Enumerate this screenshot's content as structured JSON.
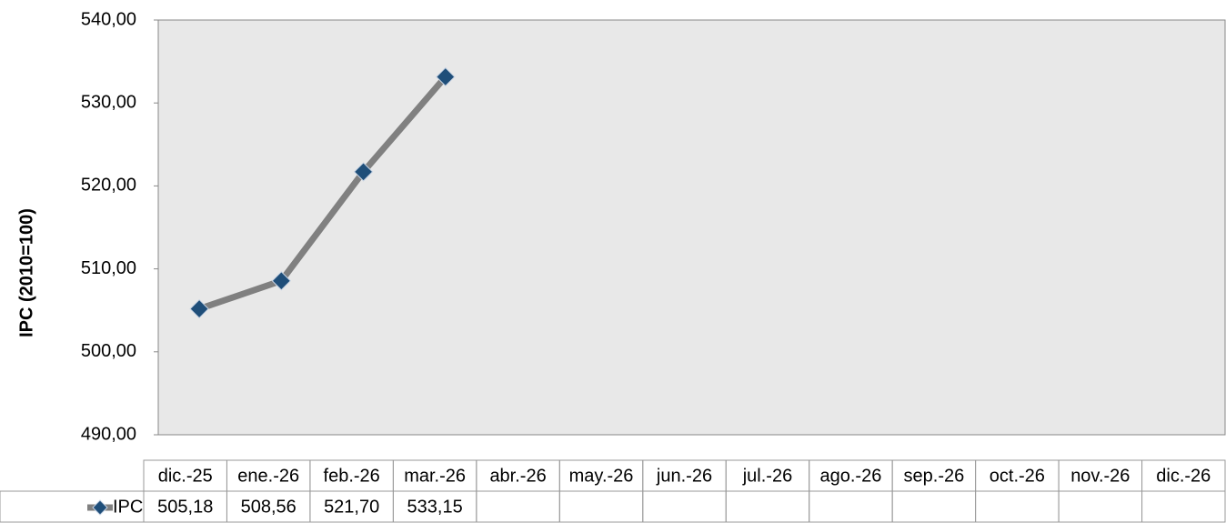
{
  "chart_data": {
    "type": "line",
    "y_label": "IPC (2010=100)",
    "categories": [
      "dic.-25",
      "ene.-26",
      "feb.-26",
      "mar.-26",
      "abr.-26",
      "may.-26",
      "jun.-26",
      "jul.-26",
      "ago.-26",
      "sep.-26",
      "oct.-26",
      "nov.-26",
      "dic.-26"
    ],
    "series": [
      {
        "name": "IPC",
        "color": "#808080",
        "marker_color": "#1f4e79",
        "values": [
          505.18,
          508.56,
          521.7,
          533.15,
          null,
          null,
          null,
          null,
          null,
          null,
          null,
          null,
          null
        ],
        "value_labels": [
          "505,18",
          "508,56",
          "521,70",
          "533,15",
          null,
          null,
          null,
          null,
          null,
          null,
          null,
          null,
          null
        ]
      }
    ],
    "ylim": [
      490,
      540
    ],
    "yticks": [
      {
        "value": 490,
        "label": "490,00"
      },
      {
        "value": 500,
        "label": "500,00"
      },
      {
        "value": 510,
        "label": "510,00"
      },
      {
        "value": 520,
        "label": "520,00"
      },
      {
        "value": 530,
        "label": "530,00"
      },
      {
        "value": 540,
        "label": "540,00"
      }
    ],
    "grid": false,
    "data_table": true
  }
}
